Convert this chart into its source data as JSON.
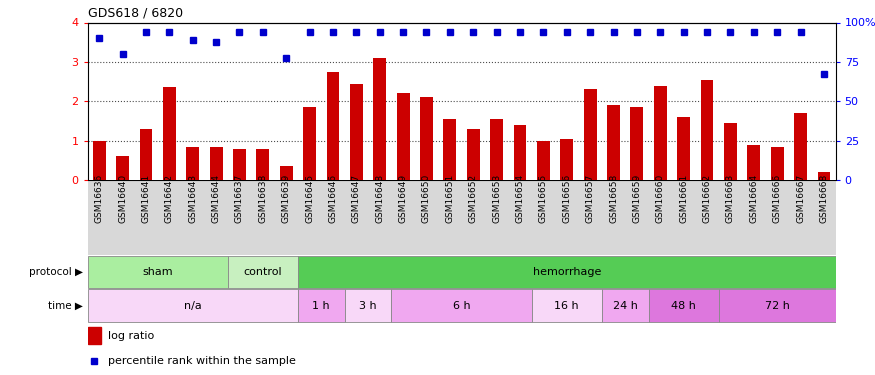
{
  "title": "GDS618 / 6820",
  "samples": [
    "GSM16636",
    "GSM16640",
    "GSM16641",
    "GSM16642",
    "GSM16643",
    "GSM16644",
    "GSM16637",
    "GSM16638",
    "GSM16639",
    "GSM16645",
    "GSM16646",
    "GSM16647",
    "GSM16648",
    "GSM16649",
    "GSM16650",
    "GSM16651",
    "GSM16652",
    "GSM16653",
    "GSM16654",
    "GSM16655",
    "GSM16656",
    "GSM16657",
    "GSM16658",
    "GSM16659",
    "GSM16660",
    "GSM16661",
    "GSM16662",
    "GSM16663",
    "GSM16664",
    "GSM16666",
    "GSM16667",
    "GSM16668"
  ],
  "log_ratio": [
    1.0,
    0.6,
    1.3,
    2.35,
    0.85,
    0.85,
    0.8,
    0.8,
    0.35,
    1.85,
    2.75,
    2.45,
    3.1,
    2.2,
    2.1,
    1.55,
    1.3,
    1.55,
    1.4,
    1.0,
    1.05,
    2.3,
    1.9,
    1.85,
    2.4,
    1.6,
    2.55,
    1.45,
    0.9,
    0.85,
    1.7,
    0.2
  ],
  "percentile_rank": [
    3.6,
    3.2,
    3.75,
    3.75,
    3.55,
    3.5,
    3.75,
    3.75,
    3.1,
    3.75,
    3.75,
    3.75,
    3.75,
    3.75,
    3.75,
    3.75,
    3.75,
    3.75,
    3.75,
    3.75,
    3.75,
    3.75,
    3.75,
    3.75,
    3.75,
    3.75,
    3.75,
    3.75,
    3.75,
    3.75,
    3.75,
    2.7
  ],
  "bar_color": "#cc0000",
  "dot_color": "#0000cc",
  "ylim": [
    0,
    4
  ],
  "yticks": [
    0,
    1,
    2,
    3,
    4
  ],
  "ytick_labels_left": [
    "0",
    "1",
    "2",
    "3",
    "4"
  ],
  "ytick_labels_right": [
    "0",
    "25",
    "50",
    "75",
    "100%"
  ],
  "protocol_row": [
    {
      "label": "sham",
      "start": 0,
      "end": 6,
      "color": "#aaeea0"
    },
    {
      "label": "control",
      "start": 6,
      "end": 9,
      "color": "#c8f0c0"
    },
    {
      "label": "hemorrhage",
      "start": 9,
      "end": 32,
      "color": "#55cc55"
    }
  ],
  "time_row": [
    {
      "label": "n/a",
      "start": 0,
      "end": 9,
      "color": "#f8d8f8"
    },
    {
      "label": "1 h",
      "start": 9,
      "end": 11,
      "color": "#f0a8f0"
    },
    {
      "label": "3 h",
      "start": 11,
      "end": 13,
      "color": "#f8d8f8"
    },
    {
      "label": "6 h",
      "start": 13,
      "end": 19,
      "color": "#f0a8f0"
    },
    {
      "label": "16 h",
      "start": 19,
      "end": 22,
      "color": "#f8d8f8"
    },
    {
      "label": "24 h",
      "start": 22,
      "end": 24,
      "color": "#f0a8f0"
    },
    {
      "label": "48 h",
      "start": 24,
      "end": 27,
      "color": "#dd77dd"
    },
    {
      "label": "72 h",
      "start": 27,
      "end": 32,
      "color": "#dd77dd"
    }
  ],
  "legend_log_ratio": "log ratio",
  "legend_pct": "percentile rank within the sample",
  "bg_color": "#ffffff",
  "xtick_bg_color": "#d8d8d8",
  "n_samples": 32
}
